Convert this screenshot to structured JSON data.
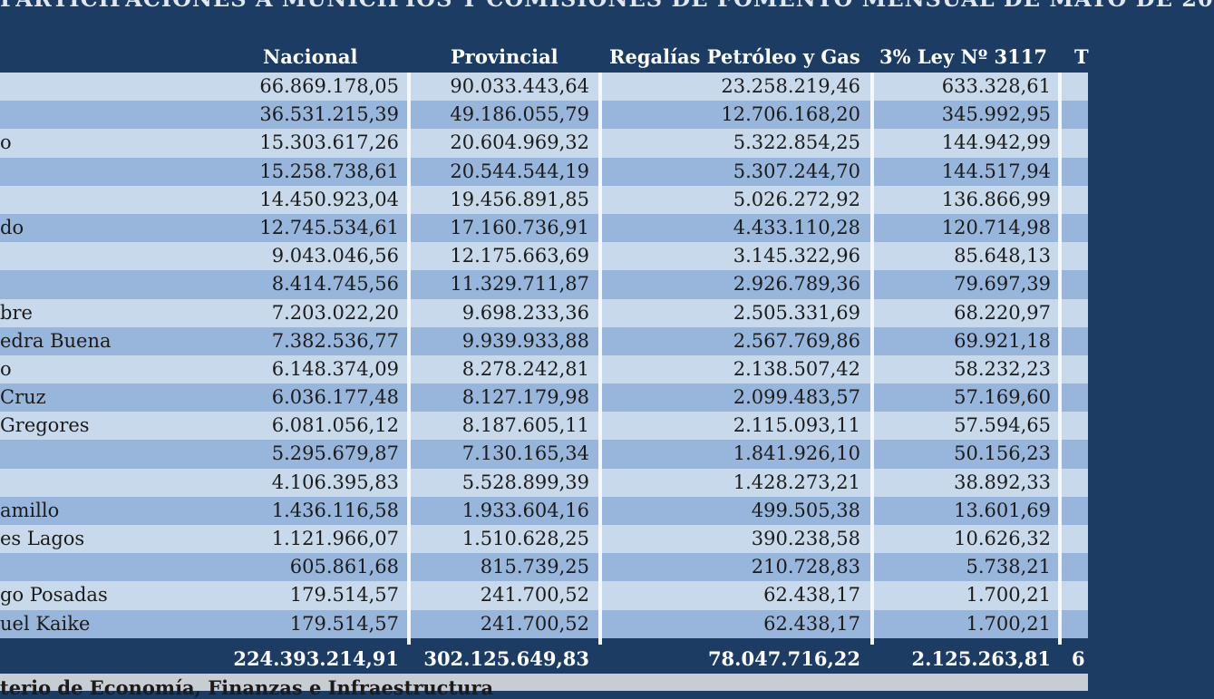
{
  "title": "PARTICIPACIONES A MUNICIPIOS Y COMISIONES DE FOMENTO MENSUAL DE MAYO DE 20",
  "headers": {
    "nacional": "Nacional",
    "provincial": "Provincial",
    "regalias": "Regalías Petróleo y Gas",
    "ley": "3% Ley Nº 3117",
    "total": "T"
  },
  "rows": [
    {
      "name": "",
      "nacional": "66.869.178,05",
      "provincial": "90.033.443,64",
      "regalias": "23.258.219,46",
      "ley": "633.328,61"
    },
    {
      "name": "",
      "nacional": "36.531.215,39",
      "provincial": "49.186.055,79",
      "regalias": "12.706.168,20",
      "ley": "345.992,95"
    },
    {
      "name": "o",
      "nacional": "15.303.617,26",
      "provincial": "20.604.969,32",
      "regalias": "5.322.854,25",
      "ley": "144.942,99"
    },
    {
      "name": "",
      "nacional": "15.258.738,61",
      "provincial": "20.544.544,19",
      "regalias": "5.307.244,70",
      "ley": "144.517,94"
    },
    {
      "name": "",
      "nacional": "14.450.923,04",
      "provincial": "19.456.891,85",
      "regalias": "5.026.272,92",
      "ley": "136.866,99"
    },
    {
      "name": "do",
      "nacional": "12.745.534,61",
      "provincial": "17.160.736,91",
      "regalias": "4.433.110,28",
      "ley": "120.714,98"
    },
    {
      "name": "",
      "nacional": "9.043.046,56",
      "provincial": "12.175.663,69",
      "regalias": "3.145.322,96",
      "ley": "85.648,13"
    },
    {
      "name": "",
      "nacional": "8.414.745,56",
      "provincial": "11.329.711,87",
      "regalias": "2.926.789,36",
      "ley": "79.697,39"
    },
    {
      "name": "bre",
      "nacional": "7.203.022,20",
      "provincial": "9.698.233,36",
      "regalias": "2.505.331,69",
      "ley": "68.220,97"
    },
    {
      "name": "edra Buena",
      "nacional": "7.382.536,77",
      "provincial": "9.939.933,88",
      "regalias": "2.567.769,86",
      "ley": "69.921,18"
    },
    {
      "name": "o",
      "nacional": "6.148.374,09",
      "provincial": "8.278.242,81",
      "regalias": "2.138.507,42",
      "ley": "58.232,23"
    },
    {
      "name": "Cruz",
      "nacional": "6.036.177,48",
      "provincial": "8.127.179,98",
      "regalias": "2.099.483,57",
      "ley": "57.169,60"
    },
    {
      "name": "Gregores",
      "nacional": "6.081.056,12",
      "provincial": "8.187.605,11",
      "regalias": "2.115.093,11",
      "ley": "57.594,65"
    },
    {
      "name": "",
      "nacional": "5.295.679,87",
      "provincial": "7.130.165,34",
      "regalias": "1.841.926,10",
      "ley": "50.156,23"
    },
    {
      "name": "",
      "nacional": "4.106.395,83",
      "provincial": "5.528.899,39",
      "regalias": "1.428.273,21",
      "ley": "38.892,33"
    },
    {
      "name": "amillo",
      "nacional": "1.436.116,58",
      "provincial": "1.933.604,16",
      "regalias": "499.505,38",
      "ley": "13.601,69"
    },
    {
      "name": "es Lagos",
      "nacional": "1.121.966,07",
      "provincial": "1.510.628,25",
      "regalias": "390.238,58",
      "ley": "10.626,32"
    },
    {
      "name": "",
      "nacional": "605.861,68",
      "provincial": "815.739,25",
      "regalias": "210.728,83",
      "ley": "5.738,21"
    },
    {
      "name": "go Posadas",
      "nacional": "179.514,57",
      "provincial": "241.700,52",
      "regalias": "62.438,17",
      "ley": "1.700,21"
    },
    {
      "name": "uel Kaike",
      "nacional": "179.514,57",
      "provincial": "241.700,52",
      "regalias": "62.438,17",
      "ley": "1.700,21"
    }
  ],
  "totals": {
    "nacional": "224.393.214,91",
    "provincial": "302.125.649,83",
    "regalias": "78.047.716,22",
    "ley": "2.125.263,81",
    "total": "6"
  },
  "source": "terio de Economía, Finanzas e Infraestructura"
}
